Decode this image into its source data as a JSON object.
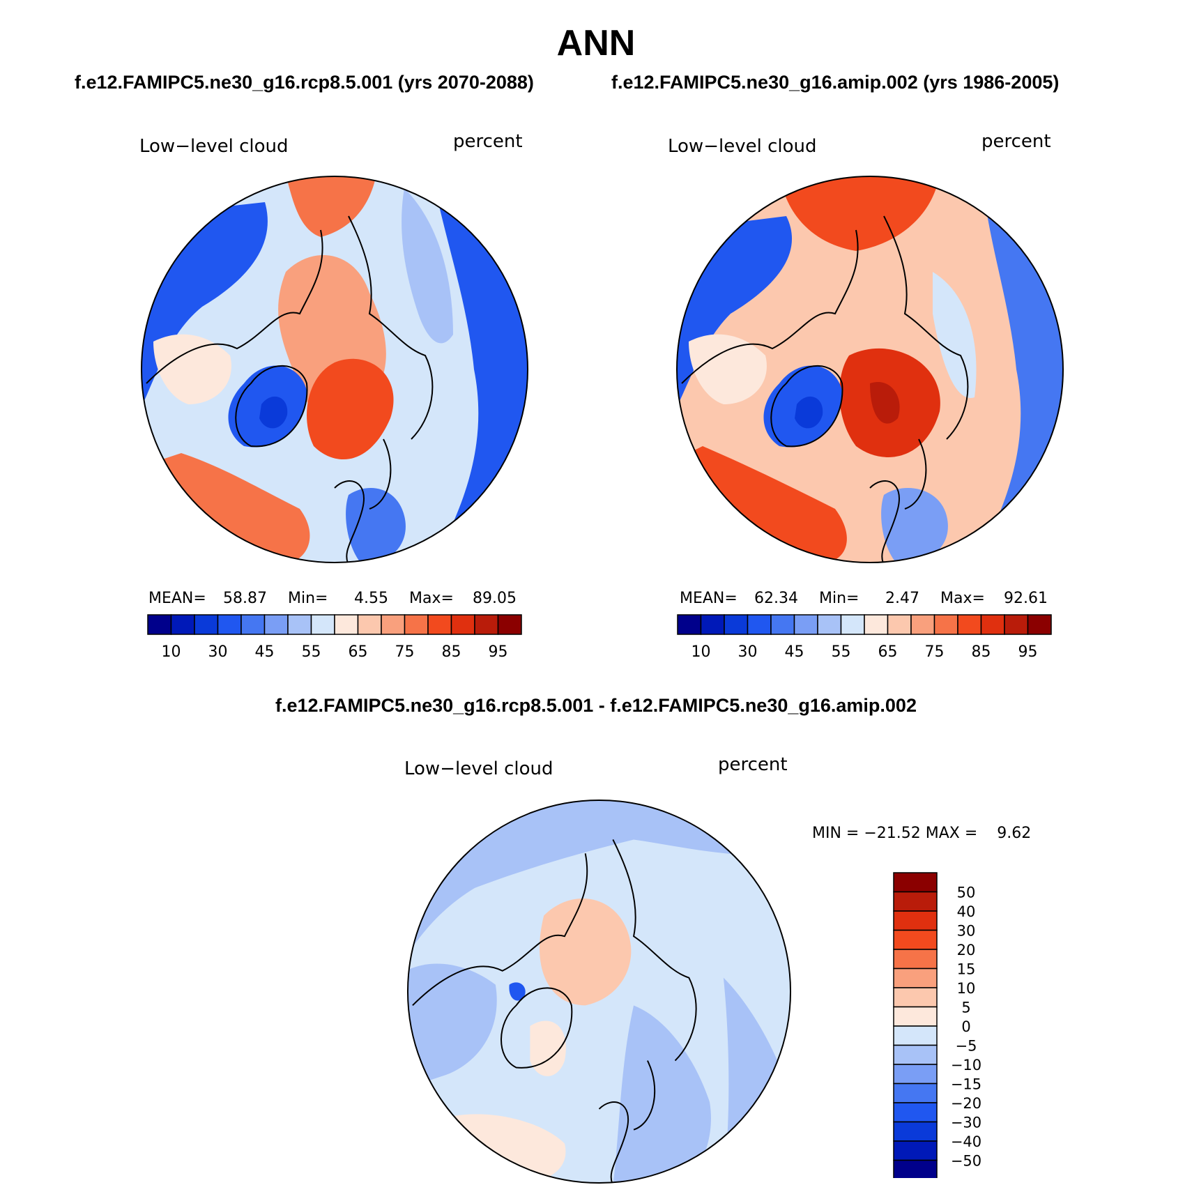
{
  "figure": {
    "title": "ANN",
    "diff_title": "f.e12.FAMIPC5.ne30_g16.rcp8.5.001 - f.e12.FAMIPC5.ne30_g16.amip.002"
  },
  "panels": [
    {
      "case_title": "f.e12.FAMIPC5.ne30_g16.rcp8.5.001 (yrs 2070-2088)",
      "variable": "Low−level cloud",
      "units": "percent",
      "mean_label": "MEAN=",
      "mean": "58.87",
      "min_label": "Min=",
      "min": "4.55",
      "max_label": "Max=",
      "max": "89.05"
    },
    {
      "case_title": "f.e12.FAMIPC5.ne30_g16.amip.002 (yrs 1986-2005)",
      "variable": "Low−level cloud",
      "units": "percent",
      "mean_label": "MEAN=",
      "mean": "62.34",
      "min_label": "Min=",
      "min": "2.47",
      "max_label": "Max=",
      "max": "92.61"
    },
    {
      "variable": "Low−level cloud",
      "units": "percent",
      "minmax": "MIN = −21.52 MAX =    9.62"
    }
  ],
  "colorbar_abs": {
    "colors": [
      "#00008b",
      "#0019b8",
      "#0a3ad9",
      "#2057f0",
      "#4577f2",
      "#7a9ef5",
      "#a8c2f7",
      "#d4e6fa",
      "#fde8dc",
      "#fcc8ae",
      "#f9a07d",
      "#f67348",
      "#f24a1e",
      "#e0300f",
      "#b91c0a",
      "#8b0000"
    ],
    "labels": [
      "10",
      "30",
      "45",
      "55",
      "65",
      "75",
      "85",
      "95"
    ]
  },
  "colorbar_diff": {
    "colors": [
      "#00008b",
      "#0019b8",
      "#0a3ad9",
      "#2057f0",
      "#4577f2",
      "#7a9ef5",
      "#a8c2f7",
      "#d4e6fa",
      "#fde8dc",
      "#fcc8ae",
      "#f9a07d",
      "#f67348",
      "#f24a1e",
      "#e0300f",
      "#b91c0a",
      "#8b0000"
    ],
    "labels": [
      "50",
      "40",
      "30",
      "20",
      "15",
      "10",
      "5",
      "0",
      "−5",
      "−10",
      "−15",
      "−20",
      "−30",
      "−40",
      "−50"
    ]
  },
  "map_colors": {
    "ocean_low": "#2057f0",
    "ocean_mid": "#a8c2f7",
    "warm": "#f67348",
    "hot": "#e0300f",
    "cool_light": "#d4e6fa",
    "peach": "#fcc8ae",
    "greenland": "#4577f2"
  }
}
